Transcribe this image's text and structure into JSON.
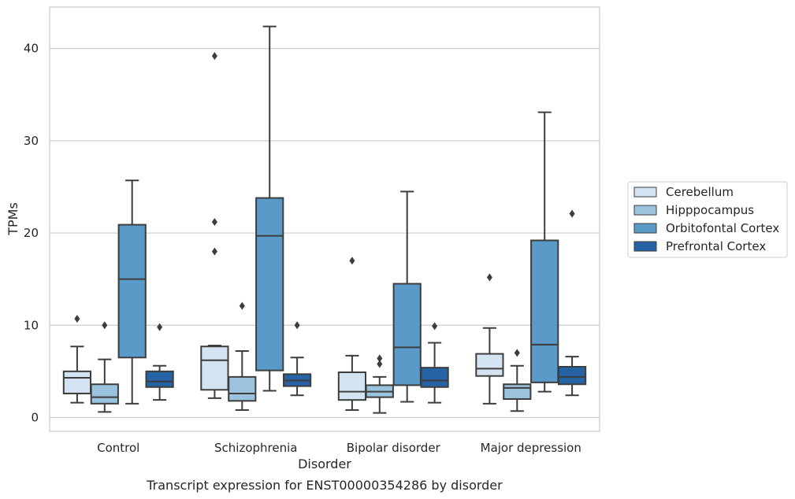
{
  "chart_data": {
    "type": "boxplot",
    "caption": "Transcript expression for ENST00000354286 by disorder",
    "xlabel": "Disorder",
    "ylabel": "TPMs",
    "ylim": [
      -1.5,
      44.5
    ],
    "yticks": [
      0,
      10,
      20,
      30,
      40
    ],
    "grid": true,
    "legend_position": "right",
    "categories": [
      "Control",
      "Schizophrenia",
      "Bipolar disorder",
      "Major depression"
    ],
    "series": [
      {
        "name": "Cerebellum",
        "color": "#d4e3f2",
        "boxes": [
          {
            "whisker_low": 1.6,
            "q1": 2.6,
            "median": 4.3,
            "q3": 5.0,
            "whisker_high": 7.7,
            "outliers": [
              10.7
            ]
          },
          {
            "whisker_low": 2.1,
            "q1": 3.0,
            "median": 6.2,
            "q3": 7.7,
            "whisker_high": 7.8,
            "outliers": [
              39.2,
              21.2,
              18.0
            ]
          },
          {
            "whisker_low": 0.8,
            "q1": 1.9,
            "median": 2.8,
            "q3": 4.9,
            "whisker_high": 6.7,
            "outliers": [
              17.0
            ]
          },
          {
            "whisker_low": 1.5,
            "q1": 4.5,
            "median": 5.3,
            "q3": 6.9,
            "whisker_high": 9.7,
            "outliers": [
              15.2
            ]
          }
        ]
      },
      {
        "name": "Hipppocampus",
        "color": "#9bc3de",
        "boxes": [
          {
            "whisker_low": 0.6,
            "q1": 1.5,
            "median": 2.2,
            "q3": 3.6,
            "whisker_high": 6.3,
            "outliers": [
              10.0
            ]
          },
          {
            "whisker_low": 0.8,
            "q1": 1.8,
            "median": 2.6,
            "q3": 4.4,
            "whisker_high": 7.2,
            "outliers": [
              12.1
            ]
          },
          {
            "whisker_low": 0.5,
            "q1": 2.2,
            "median": 2.8,
            "q3": 3.5,
            "whisker_high": 4.4,
            "outliers": [
              6.4,
              5.8
            ]
          },
          {
            "whisker_low": 0.7,
            "q1": 2.0,
            "median": 3.2,
            "q3": 3.6,
            "whisker_high": 5.6,
            "outliers": [
              7.0
            ]
          }
        ]
      },
      {
        "name": "Orbitofontal Cortex",
        "color": "#5a9ac8",
        "boxes": [
          {
            "whisker_low": 1.5,
            "q1": 6.5,
            "median": 15.0,
            "q3": 20.9,
            "whisker_high": 25.7,
            "outliers": []
          },
          {
            "whisker_low": 2.9,
            "q1": 5.1,
            "median": 19.7,
            "q3": 23.8,
            "whisker_high": 42.4,
            "outliers": []
          },
          {
            "whisker_low": 1.7,
            "q1": 3.5,
            "median": 7.6,
            "q3": 14.5,
            "whisker_high": 24.5,
            "outliers": []
          },
          {
            "whisker_low": 2.8,
            "q1": 3.8,
            "median": 7.9,
            "q3": 19.2,
            "whisker_high": 33.1,
            "outliers": []
          }
        ]
      },
      {
        "name": "Prefrontal Cortex",
        "color": "#2563a5",
        "boxes": [
          {
            "whisker_low": 1.9,
            "q1": 3.3,
            "median": 3.9,
            "q3": 5.0,
            "whisker_high": 5.6,
            "outliers": [
              9.8
            ]
          },
          {
            "whisker_low": 2.4,
            "q1": 3.4,
            "median": 4.0,
            "q3": 4.7,
            "whisker_high": 6.5,
            "outliers": [
              10.0
            ]
          },
          {
            "whisker_low": 1.6,
            "q1": 3.3,
            "median": 4.0,
            "q3": 5.4,
            "whisker_high": 8.1,
            "outliers": [
              9.9
            ]
          },
          {
            "whisker_low": 2.4,
            "q1": 3.6,
            "median": 4.4,
            "q3": 5.5,
            "whisker_high": 6.6,
            "outliers": [
              22.1
            ]
          }
        ]
      }
    ]
  }
}
